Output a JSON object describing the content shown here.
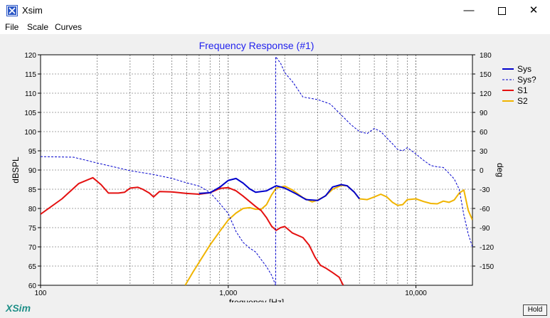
{
  "window": {
    "title": "Xsim",
    "minimize_glyph": "—",
    "maximize_glyph": "☐",
    "close_glyph": "✕"
  },
  "menu": {
    "items": [
      "File",
      "Scale",
      "Curves"
    ]
  },
  "brand": {
    "logo_text": "XSim",
    "color": "#1f8f88"
  },
  "hold_button": {
    "label": "Hold"
  },
  "chart_data": {
    "type": "line",
    "title": "Frequency Response (#1)",
    "title_color": "#2222ee",
    "xlabel": "frequency [Hz]",
    "ylabel": "dBSPL",
    "y2label": "deg",
    "x_scale": "log",
    "xlim": [
      100,
      20000
    ],
    "ylim": [
      60,
      120
    ],
    "y2lim": [
      -180,
      180
    ],
    "x_ticks": [
      100,
      1000,
      10000
    ],
    "x_tick_labels": [
      "100",
      "1,000",
      "10,000"
    ],
    "y_ticks": [
      60,
      65,
      70,
      75,
      80,
      85,
      90,
      95,
      100,
      105,
      110,
      115,
      120
    ],
    "y2_ticks": [
      -150,
      -120,
      -90,
      -60,
      -30,
      0,
      30,
      60,
      90,
      120,
      150,
      180
    ],
    "grid": true,
    "legend_position": "top-right",
    "series": [
      {
        "name": "Sys",
        "color": "#0000cc",
        "style": "solid",
        "width": 2,
        "axis": "left",
        "points": [
          [
            700,
            83.9
          ],
          [
            800,
            84.1
          ],
          [
            900,
            85.5
          ],
          [
            1000,
            87.3
          ],
          [
            1100,
            87.8
          ],
          [
            1200,
            86.6
          ],
          [
            1300,
            85.1
          ],
          [
            1400,
            84.2
          ],
          [
            1600,
            84.6
          ],
          [
            1800,
            85.9
          ],
          [
            2000,
            85.3
          ],
          [
            2300,
            83.8
          ],
          [
            2600,
            82.3
          ],
          [
            3000,
            82.1
          ],
          [
            3300,
            83.3
          ],
          [
            3600,
            85.6
          ],
          [
            4000,
            86.2
          ],
          [
            4300,
            85.9
          ],
          [
            4700,
            84.2
          ],
          [
            5000,
            82.5
          ]
        ]
      },
      {
        "name": "Sys?",
        "color": "#0000cc",
        "style": "dashed",
        "width": 1,
        "axis": "right",
        "points": [
          [
            100,
            21
          ],
          [
            150,
            20
          ],
          [
            200,
            11
          ],
          [
            300,
            -1
          ],
          [
            400,
            -7
          ],
          [
            500,
            -13
          ],
          [
            600,
            -20
          ],
          [
            700,
            -25
          ],
          [
            800,
            -35
          ],
          [
            900,
            -52
          ],
          [
            1000,
            -68
          ],
          [
            1100,
            -96
          ],
          [
            1200,
            -113
          ],
          [
            1300,
            -122
          ],
          [
            1400,
            -128
          ],
          [
            1500,
            -140
          ],
          [
            1600,
            -151
          ],
          [
            1700,
            -164
          ],
          [
            1790,
            -180
          ],
          [
            1790,
            177
          ],
          [
            1900,
            167
          ],
          [
            2000,
            152
          ],
          [
            2200,
            138
          ],
          [
            2500,
            114
          ],
          [
            3000,
            110
          ],
          [
            3500,
            103
          ],
          [
            4000,
            86
          ],
          [
            4500,
            71
          ],
          [
            5000,
            60
          ],
          [
            5500,
            57
          ],
          [
            6000,
            65
          ],
          [
            6500,
            60
          ],
          [
            7000,
            50
          ],
          [
            7500,
            41
          ],
          [
            8000,
            32
          ],
          [
            8500,
            30
          ],
          [
            9000,
            35
          ],
          [
            9500,
            30
          ],
          [
            10000,
            25
          ],
          [
            11000,
            15
          ],
          [
            12000,
            7
          ],
          [
            13000,
            5
          ],
          [
            14000,
            4
          ],
          [
            15000,
            -5
          ],
          [
            16000,
            -14
          ],
          [
            17000,
            -30
          ],
          [
            18000,
            -70
          ],
          [
            19000,
            -100
          ],
          [
            20000,
            -120
          ]
        ]
      },
      {
        "name": "S1",
        "color": "#e41010",
        "style": "solid",
        "width": 2,
        "axis": "left",
        "points": [
          [
            100,
            78.5
          ],
          [
            130,
            82.5
          ],
          [
            160,
            86.5
          ],
          [
            190,
            88
          ],
          [
            210,
            86.2
          ],
          [
            230,
            84
          ],
          [
            260,
            84
          ],
          [
            280,
            84.2
          ],
          [
            300,
            85.3
          ],
          [
            330,
            85.5
          ],
          [
            350,
            85
          ],
          [
            380,
            84
          ],
          [
            400,
            83
          ],
          [
            430,
            84.4
          ],
          [
            500,
            84.3
          ],
          [
            600,
            83.9
          ],
          [
            700,
            83.7
          ],
          [
            800,
            84.1
          ],
          [
            900,
            85.2
          ],
          [
            1000,
            85.4
          ],
          [
            1100,
            84.6
          ],
          [
            1200,
            83.2
          ],
          [
            1300,
            81.8
          ],
          [
            1400,
            80.5
          ],
          [
            1500,
            79.4
          ],
          [
            1600,
            77.6
          ],
          [
            1700,
            75.4
          ],
          [
            1800,
            74.3
          ],
          [
            1900,
            75
          ],
          [
            2000,
            75.3
          ],
          [
            2200,
            73.6
          ],
          [
            2500,
            72.4
          ],
          [
            2700,
            70.4
          ],
          [
            2900,
            67.3
          ],
          [
            3100,
            65.2
          ],
          [
            3300,
            64.5
          ],
          [
            3600,
            63.3
          ],
          [
            3900,
            62.1
          ],
          [
            4100,
            60
          ]
        ]
      },
      {
        "name": "S2",
        "color": "#f0b400",
        "style": "solid",
        "width": 2,
        "axis": "left",
        "points": [
          [
            590,
            60
          ],
          [
            650,
            63.5
          ],
          [
            700,
            66
          ],
          [
            800,
            70.5
          ],
          [
            900,
            74
          ],
          [
            1000,
            77
          ],
          [
            1100,
            78.8
          ],
          [
            1200,
            80
          ],
          [
            1300,
            80.2
          ],
          [
            1400,
            79.8
          ],
          [
            1500,
            79.8
          ],
          [
            1600,
            81
          ],
          [
            1700,
            83.5
          ],
          [
            1800,
            85.3
          ],
          [
            2000,
            85.8
          ],
          [
            2200,
            84.8
          ],
          [
            2500,
            82.8
          ],
          [
            2800,
            81.7
          ],
          [
            3000,
            82.2
          ],
          [
            3300,
            83.3
          ],
          [
            3600,
            85
          ],
          [
            4000,
            86
          ],
          [
            4300,
            85.9
          ],
          [
            4700,
            84.2
          ],
          [
            5000,
            82.5
          ],
          [
            5500,
            82.3
          ],
          [
            6000,
            83
          ],
          [
            6500,
            83.7
          ],
          [
            7000,
            83
          ],
          [
            7500,
            81.6
          ],
          [
            8000,
            80.8
          ],
          [
            8500,
            81
          ],
          [
            9000,
            82.3
          ],
          [
            10000,
            82.5
          ],
          [
            11000,
            81.8
          ],
          [
            12000,
            81.3
          ],
          [
            13000,
            81.2
          ],
          [
            14000,
            81.9
          ],
          [
            15000,
            81.6
          ],
          [
            16000,
            82.2
          ],
          [
            17000,
            84
          ],
          [
            18000,
            84.8
          ],
          [
            19000,
            79.5
          ],
          [
            20000,
            77
          ]
        ]
      }
    ]
  }
}
